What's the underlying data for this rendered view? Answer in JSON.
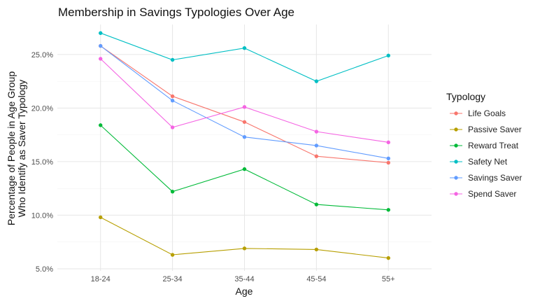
{
  "chart_data": {
    "type": "line",
    "title": "Membership in Savings Typologies Over Age",
    "xlabel": "Age",
    "ylabel_lines": [
      "Percentage of People in Age Group",
      "Who Identify as Saver Typology"
    ],
    "categories": [
      "18-24",
      "25-34",
      "35-44",
      "45-54",
      "55+"
    ],
    "ylim": [
      4.8,
      27.8
    ],
    "yticks": [
      5,
      10,
      15,
      20,
      25
    ],
    "ytick_labels": [
      "5.0%",
      "10.0%",
      "15.0%",
      "20.0%",
      "25.0%"
    ],
    "grid": true,
    "legend": {
      "title": "Typology",
      "position": "right"
    },
    "series": [
      {
        "name": "Life Goals",
        "color": "#F8766D",
        "values": [
          25.8,
          21.1,
          18.7,
          15.5,
          14.9
        ]
      },
      {
        "name": "Passive Saver",
        "color": "#B79F00",
        "values": [
          9.8,
          6.3,
          6.9,
          6.8,
          6.0
        ]
      },
      {
        "name": "Reward Treat",
        "color": "#00BA38",
        "values": [
          18.4,
          12.2,
          14.3,
          11.0,
          10.5
        ]
      },
      {
        "name": "Safety Net",
        "color": "#00BFC4",
        "values": [
          27.0,
          24.5,
          25.6,
          22.5,
          24.9
        ]
      },
      {
        "name": "Savings Saver",
        "color": "#619CFF",
        "values": [
          25.8,
          20.7,
          17.3,
          16.5,
          15.3
        ]
      },
      {
        "name": "Spend Saver",
        "color": "#F564E3",
        "values": [
          24.6,
          18.2,
          20.1,
          17.8,
          16.8
        ]
      }
    ]
  }
}
